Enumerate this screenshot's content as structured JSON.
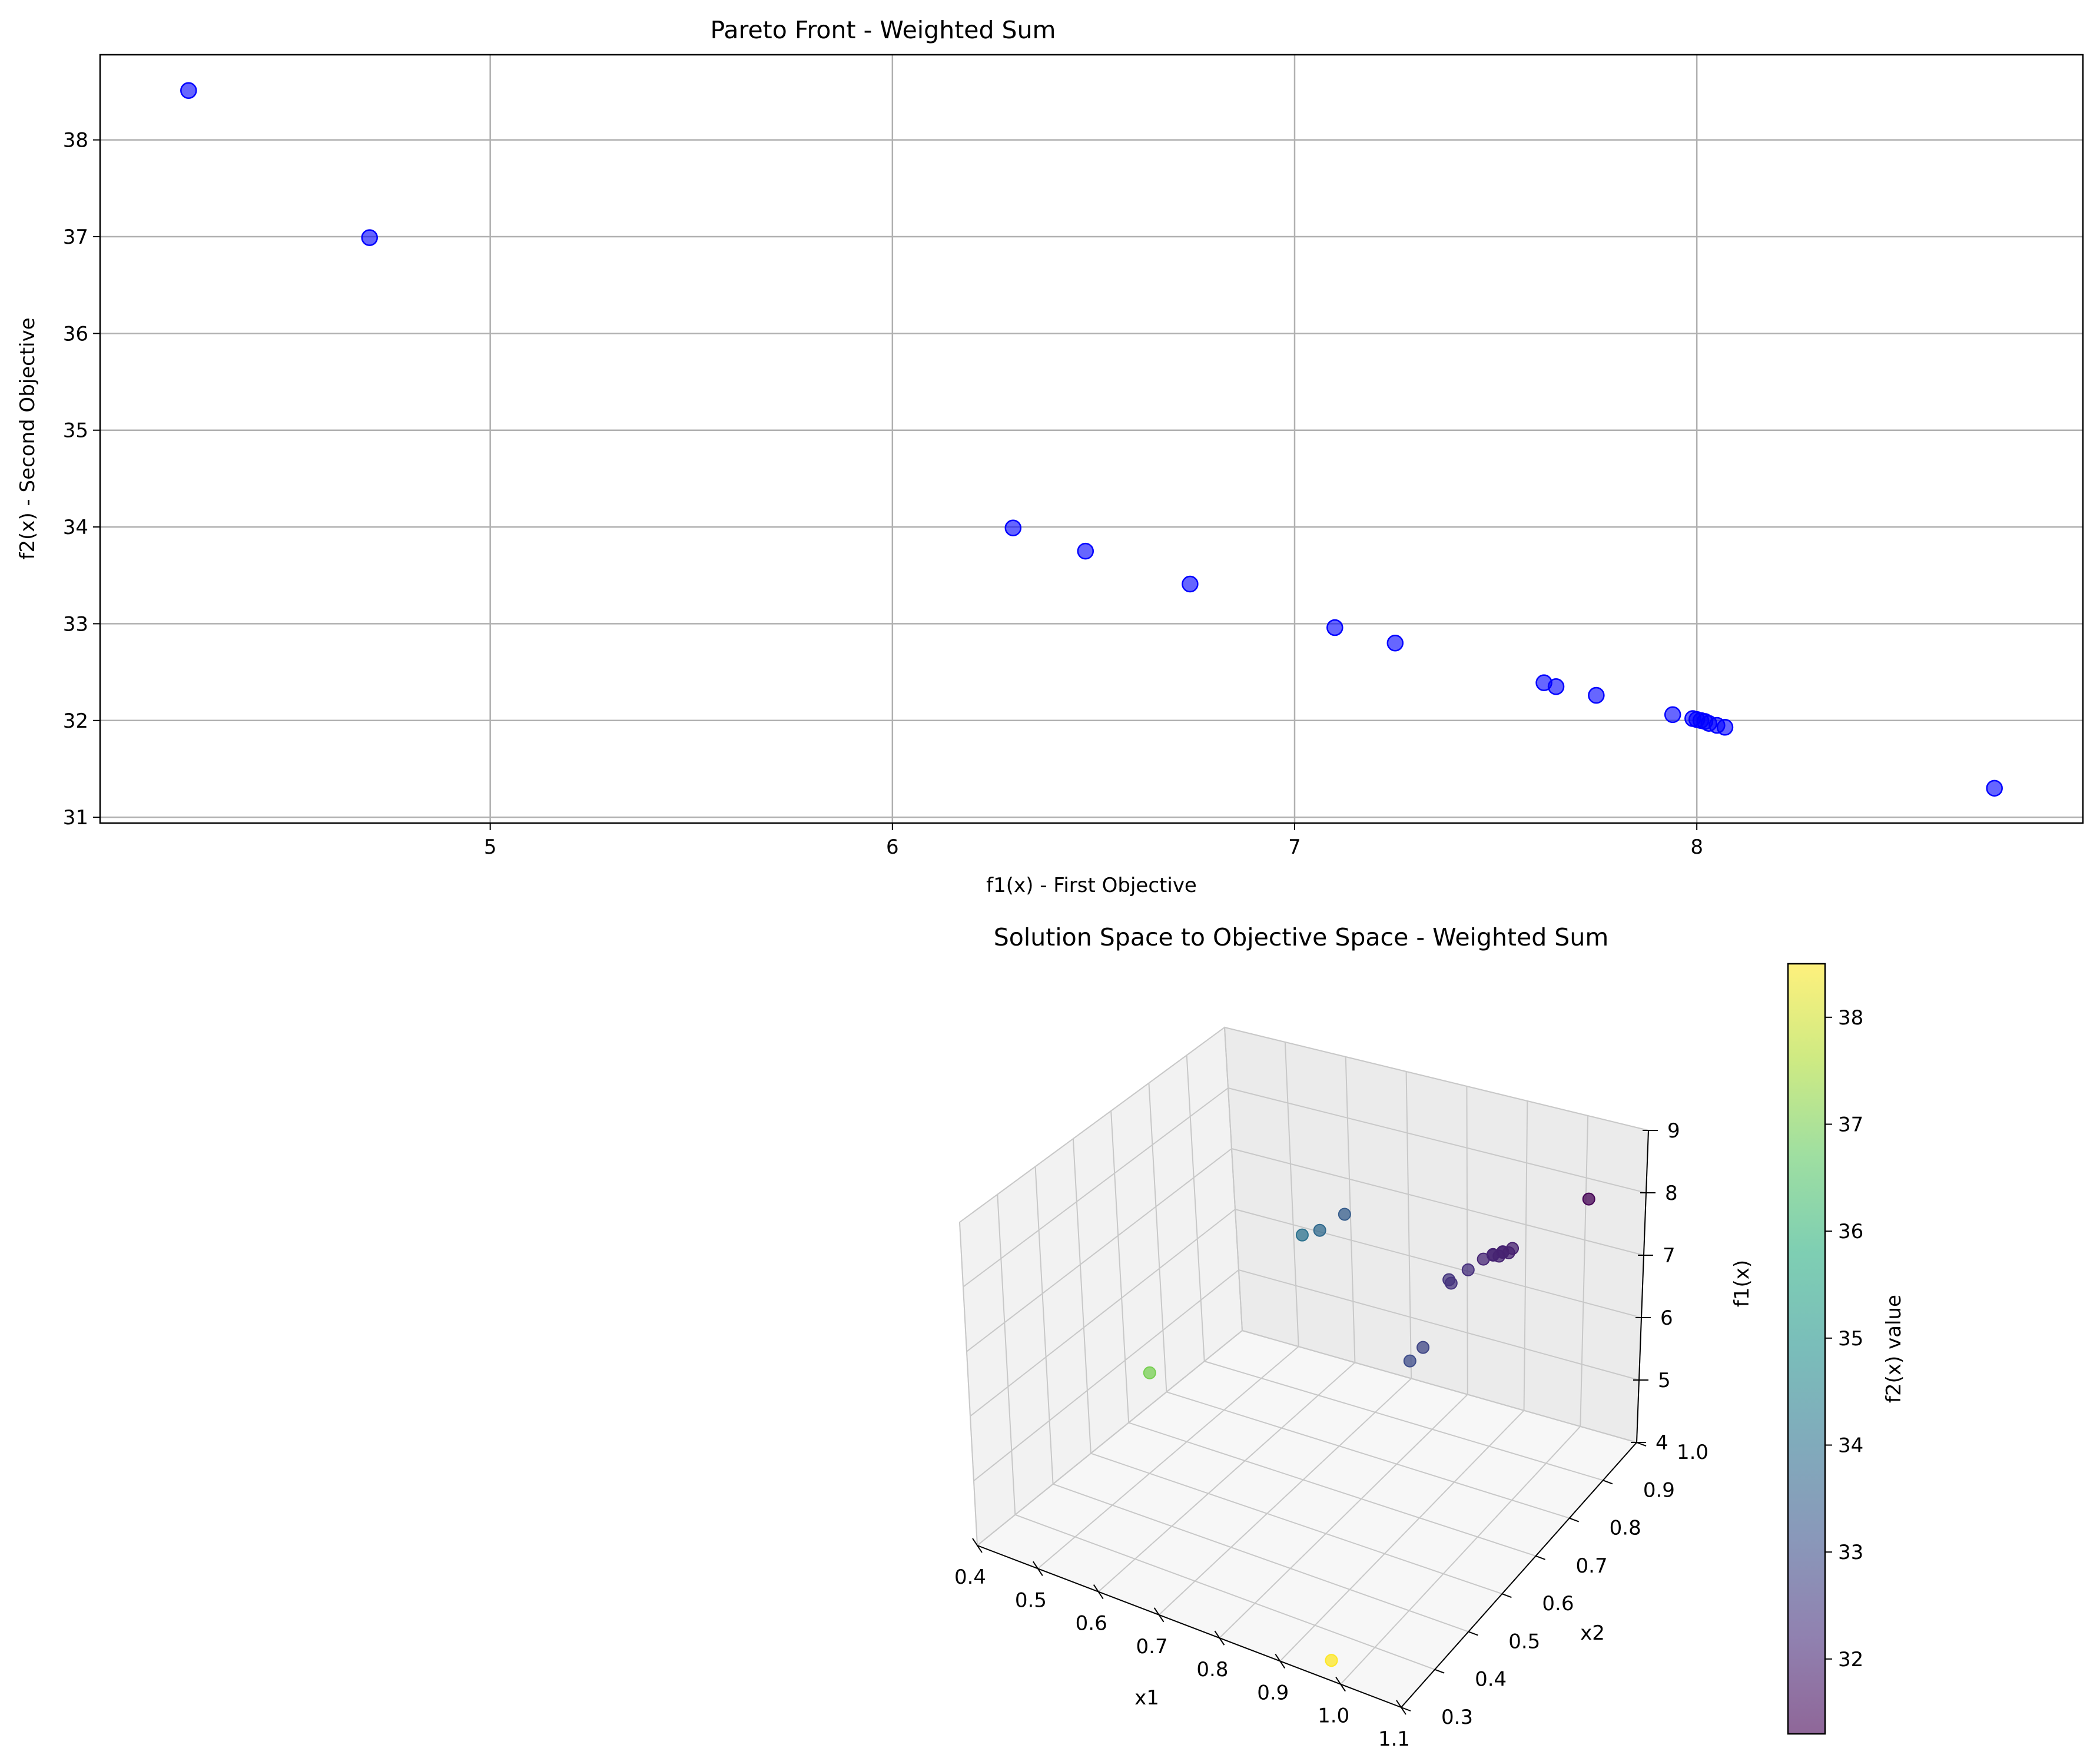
{
  "chart_data": [
    {
      "type": "scatter",
      "title": "Pareto Front - Weighted Sum",
      "xlabel": "f1(x) - First Objective",
      "ylabel": "f2(x) - Second Objective",
      "xlim": [
        4.03,
        8.96
      ],
      "ylim": [
        30.94,
        38.88
      ],
      "xticks": [
        5,
        6,
        7,
        8
      ],
      "yticks": [
        31,
        32,
        33,
        34,
        35,
        36,
        37,
        38
      ],
      "grid": true,
      "marker_color": "#0000ff",
      "series": [
        {
          "x": [
            4.25,
            4.7,
            6.3,
            6.48,
            6.74,
            7.1,
            7.25,
            7.62,
            7.65,
            7.75,
            7.94,
            7.99,
            8.0,
            8.01,
            8.02,
            8.03,
            8.05,
            8.07,
            8.74
          ],
          "y": [
            38.51,
            36.99,
            33.99,
            33.75,
            33.41,
            32.96,
            32.8,
            32.39,
            32.35,
            32.26,
            32.06,
            32.02,
            32.01,
            32.0,
            31.99,
            31.97,
            31.95,
            31.93,
            31.3
          ]
        }
      ]
    },
    {
      "type": "scatter3d",
      "title": "Solution Space to Objective Space - Weighted Sum",
      "xlabel": "x1",
      "ylabel": "x2",
      "zlabel": "f1(x)",
      "xticks": [
        "0.4",
        "0.5",
        "0.6",
        "0.7",
        "0.8",
        "0.9",
        "1.0",
        "1.1"
      ],
      "yticks": [
        "0.3",
        "0.4",
        "0.5",
        "0.6",
        "0.7",
        "0.8",
        "0.9",
        "1.0"
      ],
      "zticks": [
        "4",
        "5",
        "6",
        "7",
        "8",
        "9"
      ],
      "colormap": "viridis",
      "grid": true,
      "colorbar": {
        "label": "f2(x) value",
        "range": [
          31.3,
          38.5
        ],
        "ticks": [
          "32",
          "33",
          "34",
          "35",
          "36",
          "37",
          "38"
        ]
      }
    }
  ]
}
